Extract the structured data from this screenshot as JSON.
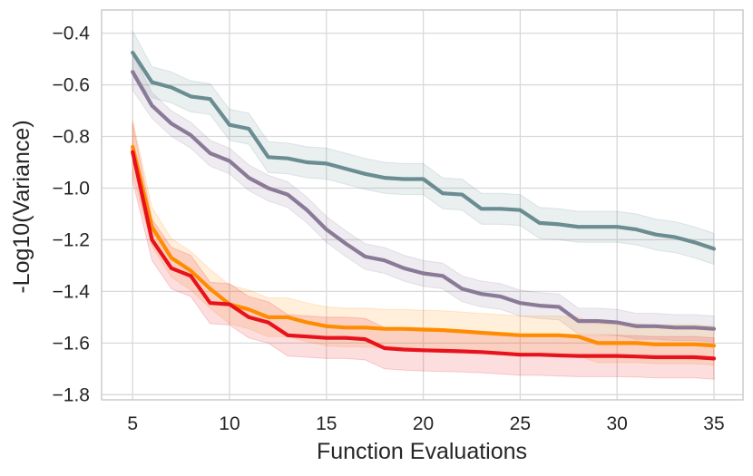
{
  "chart_data": {
    "type": "line",
    "title": "",
    "xlabel": "Function Evaluations",
    "ylabel": "-Log10(Variance)",
    "xlim": [
      3.4,
      36.5
    ],
    "ylim": [
      -1.82,
      -0.31
    ],
    "xticks": [
      5,
      10,
      15,
      20,
      25,
      30,
      35
    ],
    "yticks": [
      -0.4,
      -0.6,
      -0.8,
      -1.0,
      -1.2,
      -1.4,
      -1.6,
      -1.8
    ],
    "xtick_labels": [
      "5",
      "10",
      "15",
      "20",
      "25",
      "30",
      "35"
    ],
    "ytick_labels": [
      "−0.4",
      "−0.6",
      "−0.8",
      "−1.0",
      "−1.2",
      "−1.4",
      "−1.6",
      "−1.8"
    ],
    "grid": true,
    "legend": "none",
    "x": [
      5,
      6,
      7,
      8,
      9,
      10,
      11,
      12,
      13,
      14,
      15,
      16,
      17,
      18,
      19,
      20,
      21,
      22,
      23,
      24,
      25,
      26,
      27,
      28,
      29,
      30,
      31,
      32,
      33,
      34,
      35
    ],
    "series": [
      {
        "name": "teal",
        "color": "#6a8d92",
        "values": [
          -0.475,
          -0.59,
          -0.61,
          -0.645,
          -0.655,
          -0.755,
          -0.77,
          -0.88,
          -0.885,
          -0.9,
          -0.905,
          -0.925,
          -0.945,
          -0.96,
          -0.965,
          -0.965,
          -1.02,
          -1.025,
          -1.08,
          -1.08,
          -1.085,
          -1.135,
          -1.14,
          -1.15,
          -1.15,
          -1.15,
          -1.16,
          -1.18,
          -1.19,
          -1.21,
          -1.235
        ],
        "band": 0.06
      },
      {
        "name": "purple",
        "color": "#8a7a98",
        "values": [
          -0.55,
          -0.68,
          -0.75,
          -0.795,
          -0.865,
          -0.895,
          -0.96,
          -1.0,
          -1.025,
          -1.085,
          -1.16,
          -1.215,
          -1.265,
          -1.28,
          -1.31,
          -1.33,
          -1.34,
          -1.39,
          -1.41,
          -1.42,
          -1.445,
          -1.455,
          -1.46,
          -1.515,
          -1.515,
          -1.52,
          -1.535,
          -1.535,
          -1.54,
          -1.54,
          -1.545
        ],
        "band": 0.05
      },
      {
        "name": "orange",
        "color": "#ff8c00",
        "values": [
          -0.84,
          -1.15,
          -1.27,
          -1.32,
          -1.39,
          -1.45,
          -1.47,
          -1.5,
          -1.5,
          -1.52,
          -1.535,
          -1.54,
          -1.54,
          -1.545,
          -1.545,
          -1.548,
          -1.55,
          -1.555,
          -1.56,
          -1.565,
          -1.57,
          -1.57,
          -1.57,
          -1.575,
          -1.6,
          -1.6,
          -1.6,
          -1.605,
          -1.605,
          -1.605,
          -1.61
        ],
        "band": 0.075
      },
      {
        "name": "red",
        "color": "#e8121c",
        "values": [
          -0.86,
          -1.2,
          -1.31,
          -1.34,
          -1.445,
          -1.45,
          -1.5,
          -1.52,
          -1.57,
          -1.575,
          -1.58,
          -1.58,
          -1.585,
          -1.62,
          -1.625,
          -1.628,
          -1.63,
          -1.632,
          -1.635,
          -1.64,
          -1.645,
          -1.645,
          -1.648,
          -1.65,
          -1.65,
          -1.65,
          -1.652,
          -1.655,
          -1.655,
          -1.655,
          -1.66
        ],
        "band": 0.08
      }
    ]
  }
}
